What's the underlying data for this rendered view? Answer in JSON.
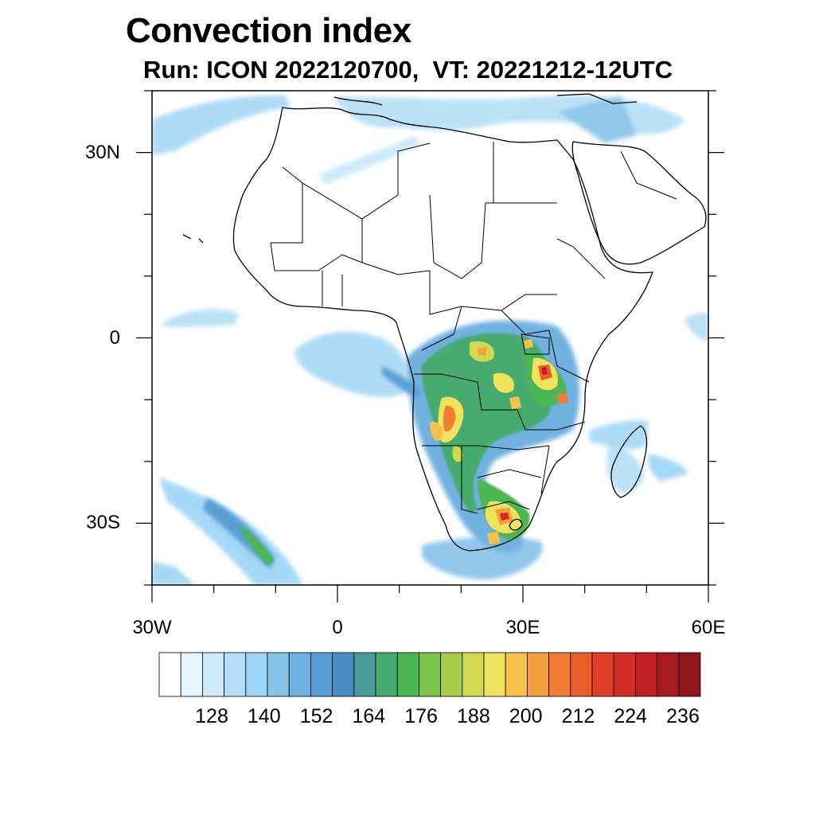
{
  "title": "Convection index",
  "subtitle": "Run: ICON 2022120700,  VT: 20221212-12UTC",
  "map": {
    "projection": "lat-lon",
    "lon_range": [
      -30,
      60
    ],
    "lat_range": [
      -40,
      40
    ],
    "lat_ticks": [
      {
        "lat": 30,
        "label": "30N"
      },
      {
        "lat": 0,
        "label": "0"
      },
      {
        "lat": -30,
        "label": "30S"
      }
    ],
    "lon_ticks": [
      {
        "lon": -30,
        "label": "30W"
      },
      {
        "lon": 0,
        "label": "0"
      },
      {
        "lon": 30,
        "label": "30E"
      },
      {
        "lon": 60,
        "label": "60E"
      }
    ],
    "regions": [
      {
        "name": "Congo basin convection",
        "level": "high"
      },
      {
        "name": "East Africa / Lake Victoria convection",
        "level": "high"
      },
      {
        "name": "South Africa Highveld convection",
        "level": "high"
      },
      {
        "name": "Gulf of Guinea band",
        "level": "low"
      },
      {
        "name": "South Atlantic band",
        "level": "mid"
      },
      {
        "name": "Madagascar convection",
        "level": "low"
      },
      {
        "name": "North Africa / Mediterranean band",
        "level": "low"
      }
    ]
  },
  "colorbar": {
    "colors": [
      "#ffffff",
      "#e6f4fd",
      "#cde9fa",
      "#b4def7",
      "#9bd4f4",
      "#86c3ea",
      "#6fb1e0",
      "#5a9ed6",
      "#4a8cc4",
      "#489a9b",
      "#46ab70",
      "#4bb652",
      "#7bc249",
      "#a9cd4a",
      "#d1d950",
      "#eee35b",
      "#f6c24c",
      "#f49f3e",
      "#f17d34",
      "#eb5c2c",
      "#e03f27",
      "#d52b25",
      "#c02024",
      "#a81b21",
      "#8e171d"
    ],
    "labels": [
      "128",
      "140",
      "152",
      "164",
      "176",
      "188",
      "200",
      "212",
      "224",
      "236"
    ]
  }
}
